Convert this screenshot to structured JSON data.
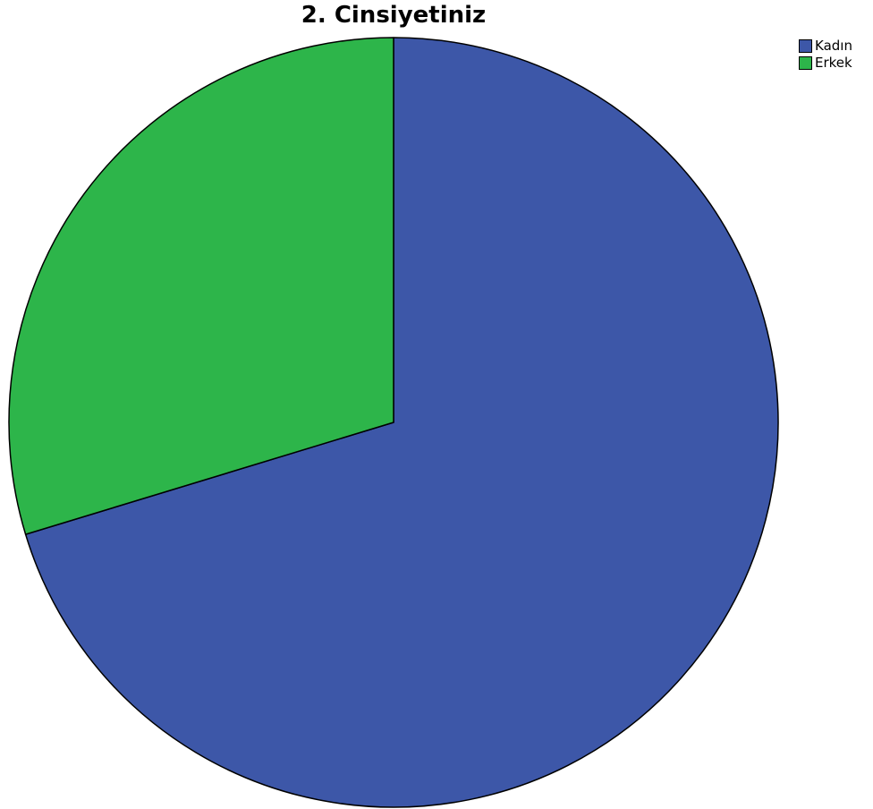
{
  "chart_data": {
    "type": "pie",
    "title": "2. Cinsiyetiniz",
    "categories": [
      "Kadın",
      "Erkek"
    ],
    "values": [
      70.3,
      29.7
    ],
    "colors": [
      "#3d57a8",
      "#2db54a"
    ],
    "legend_position": "top-right",
    "start_angle_deg": 0,
    "direction": "clockwise"
  }
}
